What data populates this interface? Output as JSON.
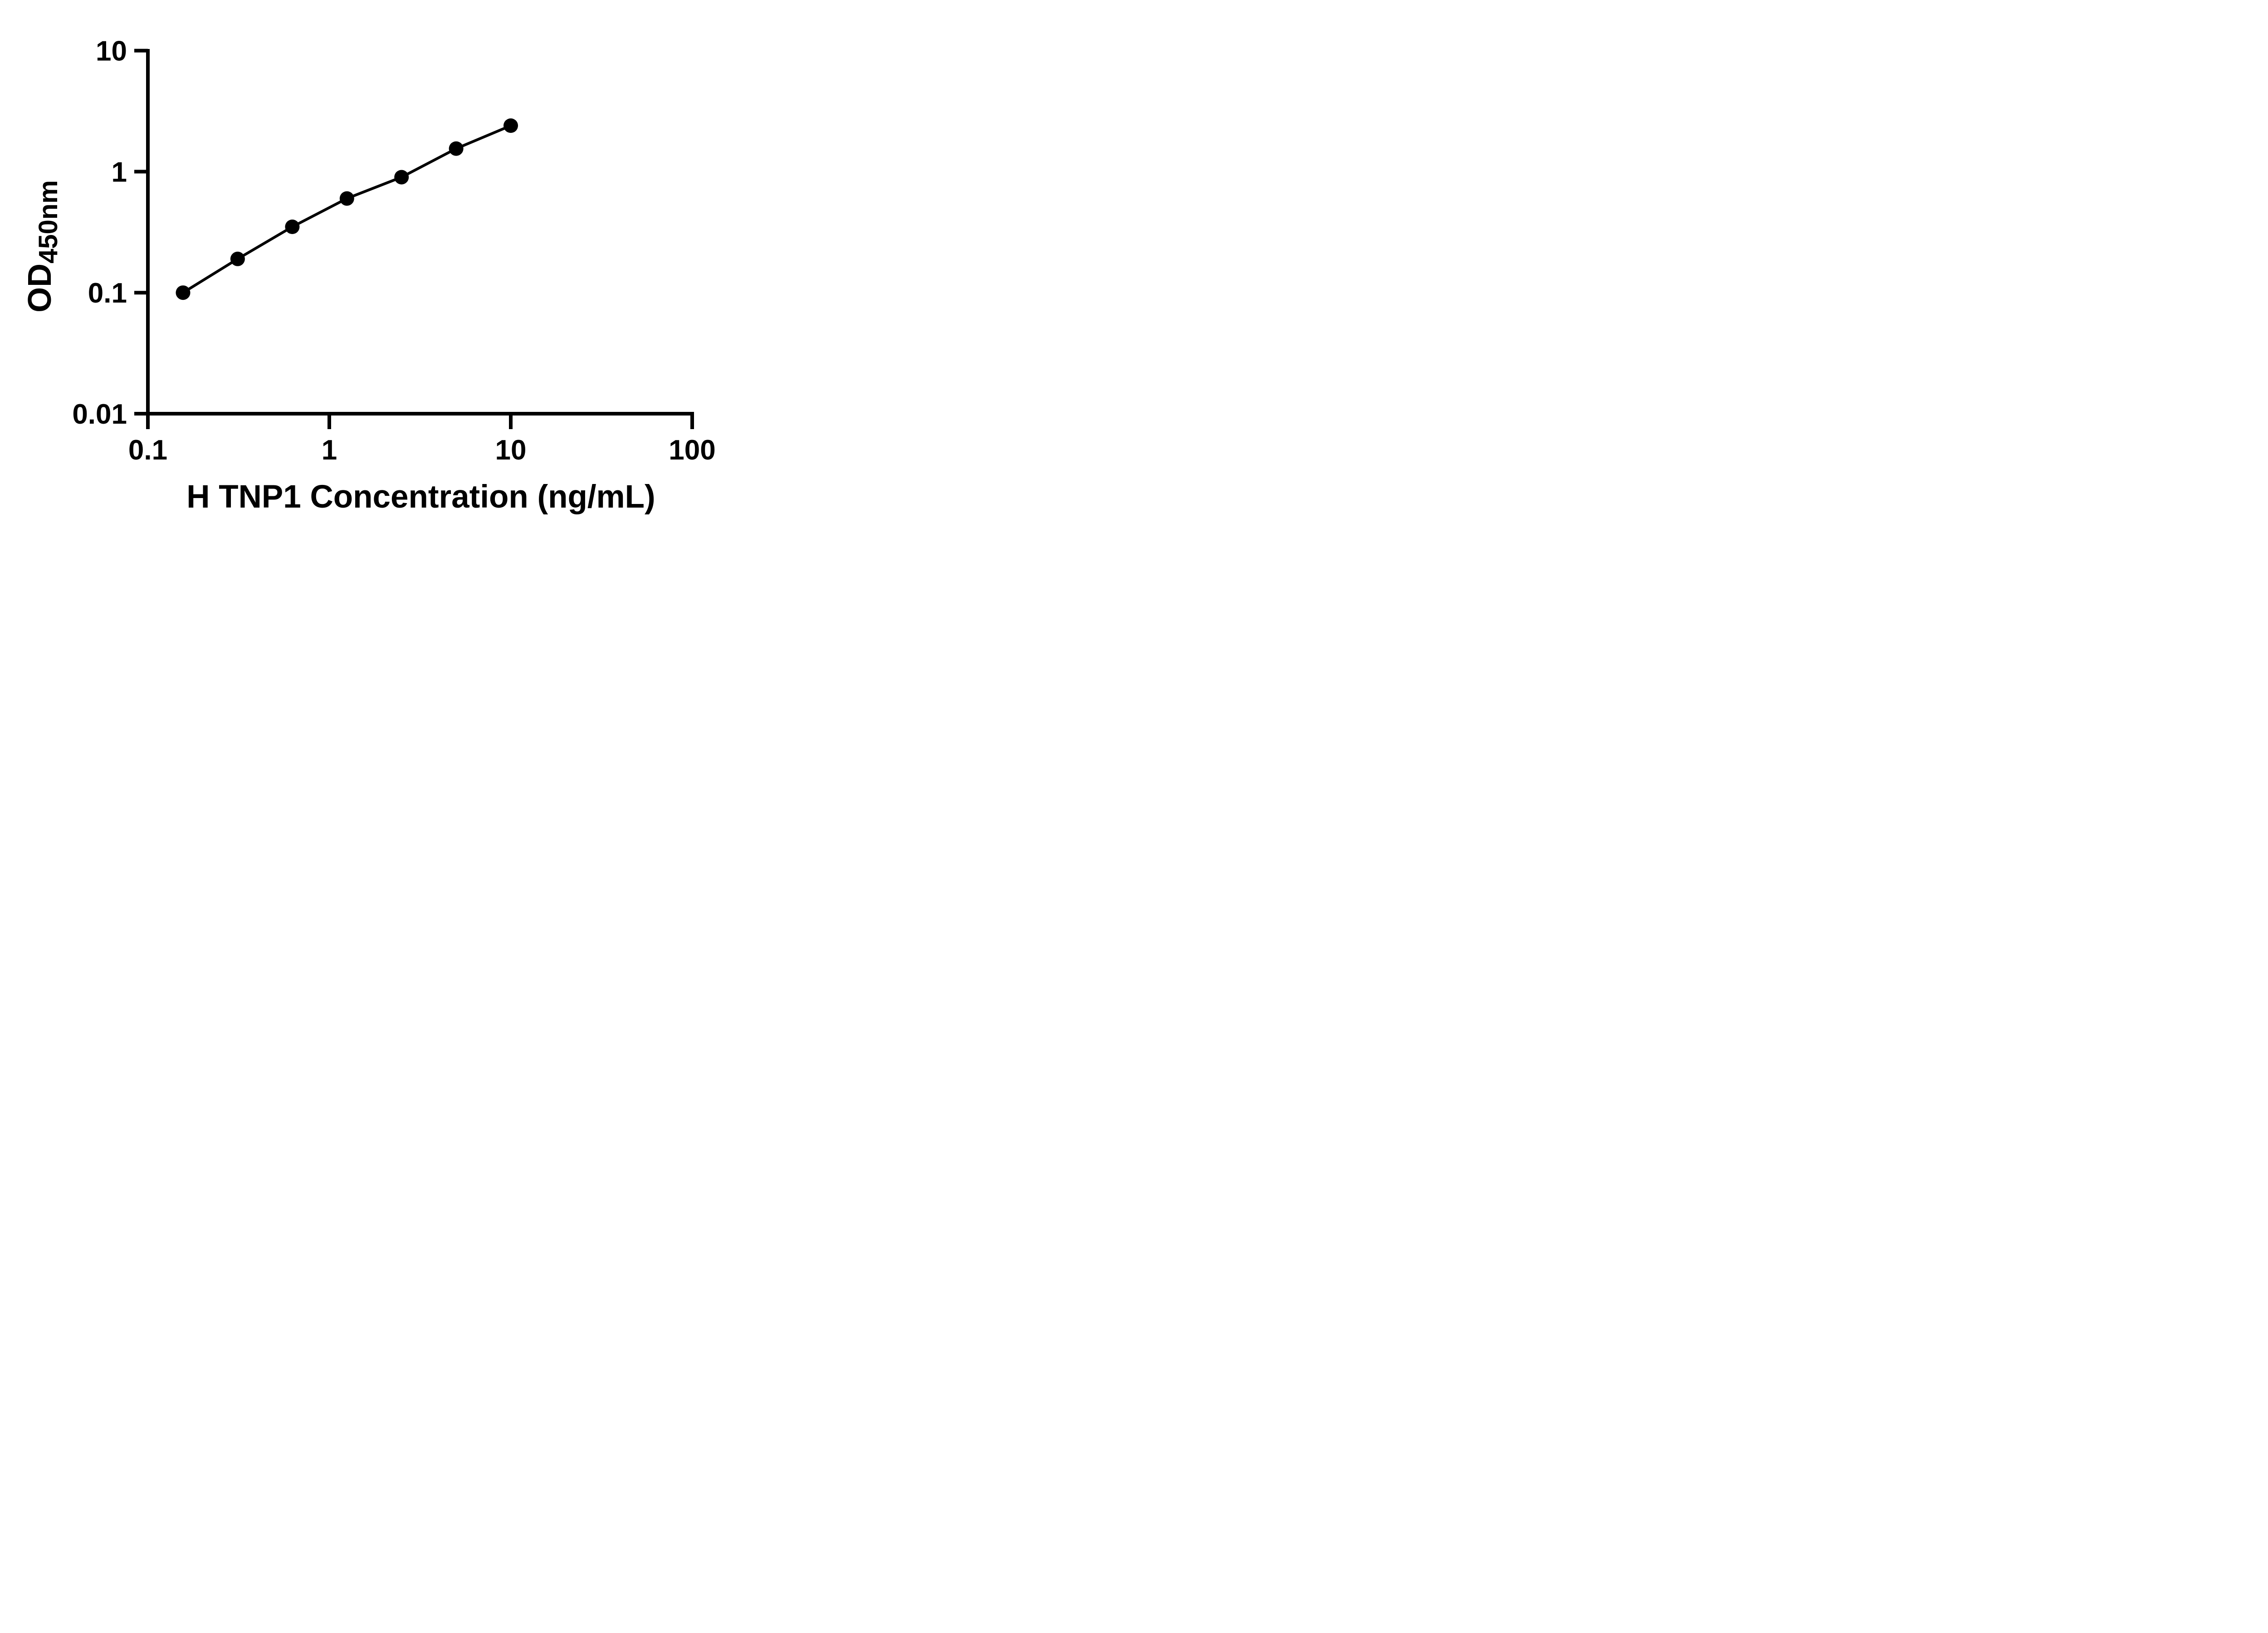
{
  "figure": {
    "background_color": "#ffffff",
    "ink_color": "#000000"
  },
  "chart_data": {
    "type": "line",
    "title": "",
    "xlabel": "H TNP1 Concentration (ng/mL)",
    "ylabel": "OD",
    "ylabel_subscript": "450nm",
    "x_scale": "log",
    "y_scale": "log",
    "xlim": [
      0.1,
      100
    ],
    "ylim": [
      0.01,
      10
    ],
    "x_ticks": [
      0.1,
      1,
      10,
      100
    ],
    "x_tick_labels": [
      "0.1",
      "1",
      "10",
      "100"
    ],
    "y_ticks": [
      0.01,
      0.1,
      1,
      10
    ],
    "y_tick_labels": [
      "0.01",
      "0.1",
      "1",
      "10"
    ],
    "grid": false,
    "legend": false,
    "series": [
      {
        "marker": "circle",
        "color": "#000000",
        "x": [
          0.15625,
          0.3125,
          0.625,
          1.25,
          2.5,
          5,
          10
        ],
        "y": [
          0.1,
          0.19,
          0.35,
          0.6,
          0.9,
          1.55,
          2.4
        ]
      }
    ]
  }
}
